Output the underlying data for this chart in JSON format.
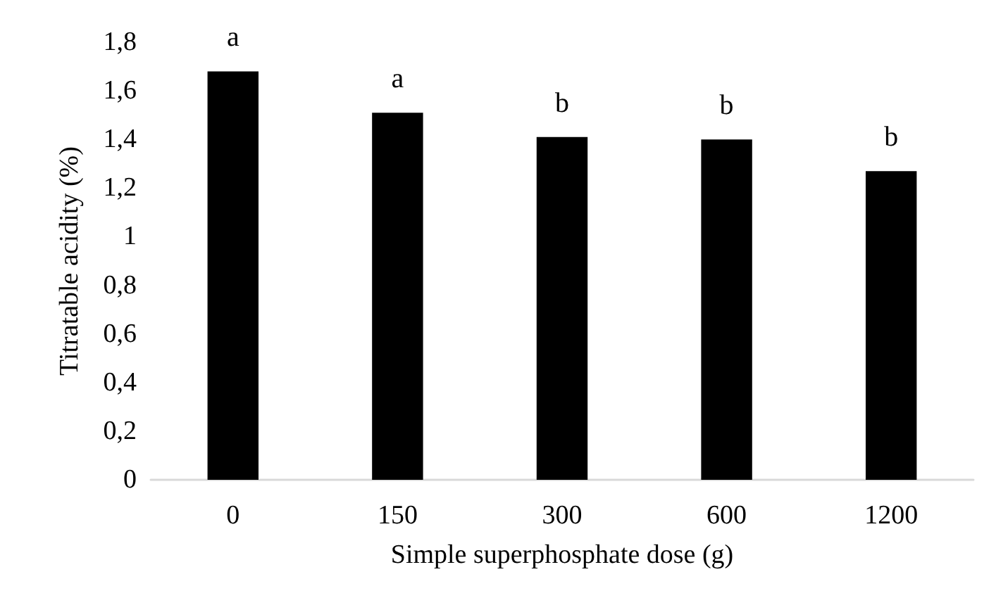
{
  "chart_data": {
    "type": "bar",
    "xlabel": "Simple superphosphate dose (g)",
    "ylabel": "Titratable acidity (%)",
    "categories": [
      "0",
      "150",
      "300",
      "600",
      "1200"
    ],
    "values": [
      1.68,
      1.51,
      1.41,
      1.4,
      1.27
    ],
    "color": "#000000",
    "ylim": [
      0,
      1.8
    ],
    "yticks": [
      0,
      {
        "value": 0.2,
        "label": "0,2"
      },
      {
        "value": 0.4,
        "label": "0,4"
      },
      {
        "value": 0.6,
        "label": "0,6"
      },
      {
        "value": 0.8,
        "label": "0,8"
      },
      1,
      {
        "value": 1.2,
        "label": "1,2"
      },
      {
        "value": 1.4,
        "label": "1,4"
      },
      {
        "value": 1.6,
        "label": "1,6"
      },
      {
        "value": 1.8,
        "label": "1,8"
      }
    ],
    "annotations": [
      {
        "text": "a",
        "x": "0",
        "y": 1.68
      },
      {
        "text": "a",
        "x": "150",
        "y": 1.51
      },
      {
        "text": "b",
        "x": "300",
        "y": 1.41
      },
      {
        "text": "b",
        "x": "600",
        "y": 1.4
      },
      {
        "text": "b",
        "x": "1200",
        "y": 1.27
      }
    ],
    "grid": false
  }
}
